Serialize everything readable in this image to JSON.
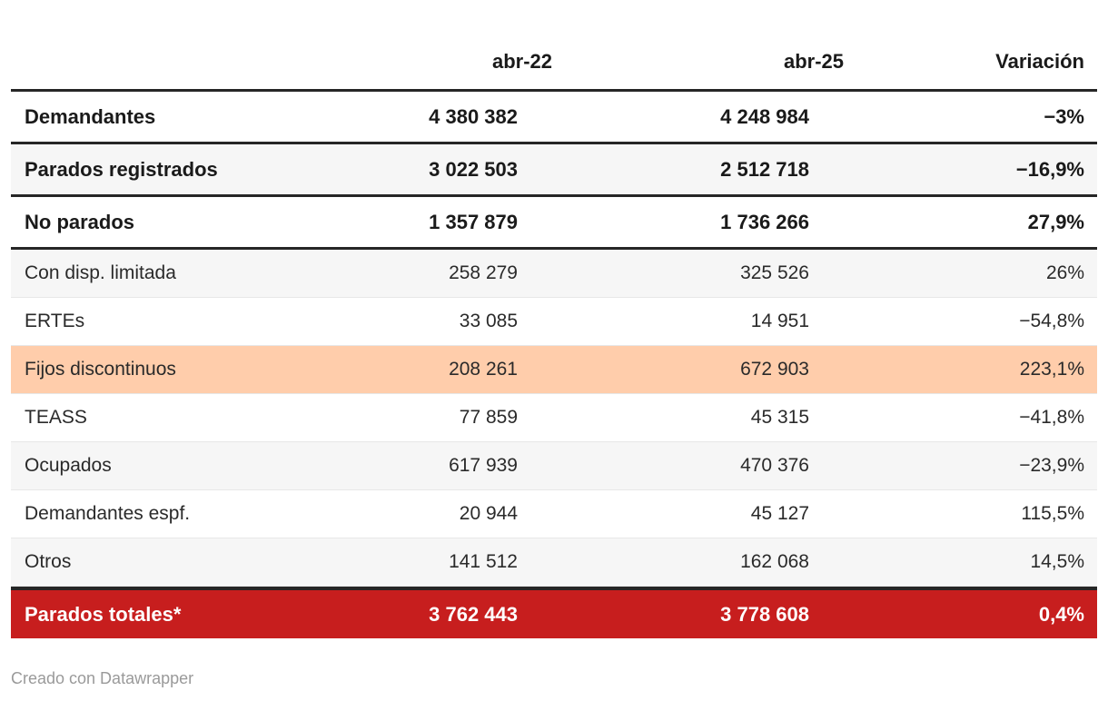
{
  "table": {
    "columns": [
      "",
      "abr-22",
      "abr-25",
      "Variación"
    ],
    "rows": [
      {
        "label": "Demandantes",
        "abr22": "4 380 382",
        "abr25": "4 248 984",
        "variacion": "−3%",
        "style": "bold",
        "bg": "white"
      },
      {
        "label": "Parados registrados",
        "abr22": "3 022 503",
        "abr25": "2 512 718",
        "variacion": "−16,9%",
        "style": "bold",
        "bg": "gray"
      },
      {
        "label": "No parados",
        "abr22": "1 357 879",
        "abr25": "1 736 266",
        "variacion": "27,9%",
        "style": "bold",
        "bg": "white"
      },
      {
        "label": "Con disp. limitada",
        "abr22": "258 279",
        "abr25": "325 526",
        "variacion": "26%",
        "style": "regular",
        "bg": "gray"
      },
      {
        "label": "ERTEs",
        "abr22": "33 085",
        "abr25": "14 951",
        "variacion": "−54,8%",
        "style": "regular",
        "bg": "white"
      },
      {
        "label": "Fijos discontinuos",
        "abr22": "208 261",
        "abr25": "672 903",
        "variacion": "223,1%",
        "style": "regular",
        "bg": "peach"
      },
      {
        "label": "TEASS",
        "abr22": "77 859",
        "abr25": "45 315",
        "variacion": "−41,8%",
        "style": "regular",
        "bg": "white"
      },
      {
        "label": "Ocupados",
        "abr22": "617 939",
        "abr25": "470 376",
        "variacion": "−23,9%",
        "style": "regular",
        "bg": "gray"
      },
      {
        "label": "Demandantes espf.",
        "abr22": "20 944",
        "abr25": "45 127",
        "variacion": "115,5%",
        "style": "regular",
        "bg": "white"
      },
      {
        "label": "Otros",
        "abr22": "141 512",
        "abr25": "162 068",
        "variacion": "14,5%",
        "style": "regular",
        "bg": "gray"
      },
      {
        "label": "Parados totales*",
        "abr22": "3 762 443",
        "abr25": "3 778 608",
        "variacion": "0,4%",
        "style": "total",
        "bg": "red"
      }
    ]
  },
  "footer": {
    "credit": "Creado con Datawrapper"
  },
  "colors": {
    "text": "#2a2a2a",
    "text_bold": "#1a1a1a",
    "total_text": "#ffffff",
    "accent_red": "#c71e1e",
    "highlight_peach": "#ffcdab",
    "row_alt": "#f6f6f6",
    "border_dark": "#262626",
    "border_light": "#e7e7e7",
    "credit_gray": "#9a9a9a"
  },
  "chart_data": {
    "type": "table",
    "title": "",
    "columns": [
      "",
      "abr-22",
      "abr-25",
      "Variación"
    ],
    "rows": [
      {
        "label": "Demandantes",
        "abr_22": 4380382,
        "abr_25": 4248984,
        "variacion_pct": -3.0
      },
      {
        "label": "Parados registrados",
        "abr_22": 3022503,
        "abr_25": 2512718,
        "variacion_pct": -16.9
      },
      {
        "label": "No parados",
        "abr_22": 1357879,
        "abr_25": 1736266,
        "variacion_pct": 27.9
      },
      {
        "label": "Con disp. limitada",
        "abr_22": 258279,
        "abr_25": 325526,
        "variacion_pct": 26.0
      },
      {
        "label": "ERTEs",
        "abr_22": 33085,
        "abr_25": 14951,
        "variacion_pct": -54.8
      },
      {
        "label": "Fijos discontinuos",
        "abr_22": 208261,
        "abr_25": 672903,
        "variacion_pct": 223.1,
        "highlighted": true
      },
      {
        "label": "TEASS",
        "abr_22": 77859,
        "abr_25": 45315,
        "variacion_pct": -41.8
      },
      {
        "label": "Ocupados",
        "abr_22": 617939,
        "abr_25": 470376,
        "variacion_pct": -23.9
      },
      {
        "label": "Demandantes espf.",
        "abr_22": 20944,
        "abr_25": 45127,
        "variacion_pct": 115.5
      },
      {
        "label": "Otros",
        "abr_22": 141512,
        "abr_25": 162068,
        "variacion_pct": 14.5
      },
      {
        "label": "Parados totales*",
        "abr_22": 3762443,
        "abr_25": 3778608,
        "variacion_pct": 0.4,
        "total": true
      }
    ]
  }
}
